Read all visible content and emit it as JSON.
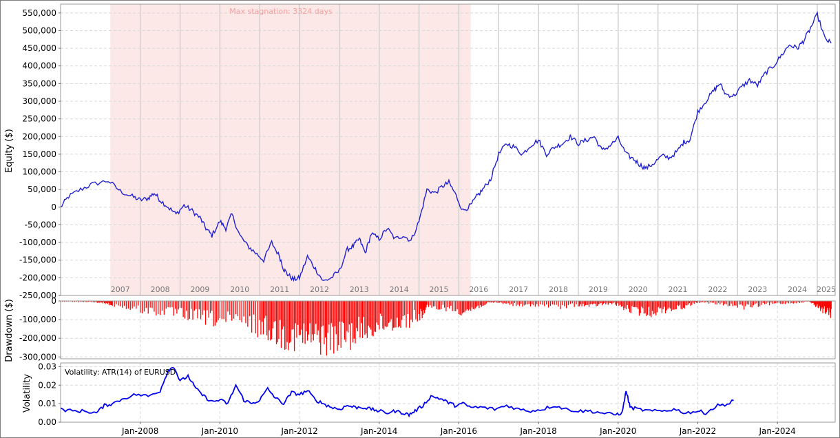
{
  "chart_data": [
    {
      "type": "line",
      "ylabel": "Equity ($)",
      "ylim": [
        -250000,
        575000
      ],
      "yticks": [
        550000,
        500000,
        450000,
        400000,
        350000,
        300000,
        250000,
        200000,
        150000,
        100000,
        50000,
        0,
        -50000,
        -100000,
        -150000,
        -200000,
        -250000
      ],
      "ytick_labels": [
        "550,000",
        "500,000",
        "450,000",
        "400,000",
        "350,000",
        "300,000",
        "250,000",
        "200,000",
        "150,000",
        "100,000",
        "50,000",
        "0",
        "-50,000",
        "-100,000",
        "-150,000",
        "-200,000",
        "-250,000"
      ],
      "year_labels": [
        "2007",
        "2008",
        "2009",
        "2010",
        "2011",
        "2012",
        "2013",
        "2014",
        "2015",
        "2016",
        "2017",
        "2018",
        "2019",
        "2020",
        "2021",
        "2022",
        "2023",
        "2024",
        "2025"
      ],
      "annotation": "Max stagnation: 3324 days",
      "stagnation_period": [
        2007.25,
        2016.3
      ],
      "series": [
        {
          "color": "#2020d0",
          "x": [
            2006.0,
            2006.2,
            2006.5,
            2006.8,
            2007.2,
            2007.5,
            2007.8,
            2008.0,
            2008.2,
            2008.35,
            2008.5,
            2008.7,
            2008.9,
            2009.1,
            2009.3,
            2009.5,
            2009.65,
            2009.8,
            2010.0,
            2010.15,
            2010.3,
            2010.5,
            2010.7,
            2010.9,
            2011.1,
            2011.3,
            2011.5,
            2011.6,
            2011.7,
            2011.85,
            2012.0,
            2012.2,
            2012.4,
            2012.6,
            2012.8,
            2013.0,
            2013.2,
            2013.35,
            2013.5,
            2013.65,
            2013.8,
            2014.0,
            2014.2,
            2014.4,
            2014.6,
            2014.8,
            2015.0,
            2015.2,
            2015.4,
            2015.6,
            2015.75,
            2015.9,
            2016.1,
            2016.3,
            2016.45,
            2016.6,
            2016.8,
            2017.0,
            2017.2,
            2017.4,
            2017.6,
            2017.8,
            2018.0,
            2018.2,
            2018.4,
            2018.6,
            2018.8,
            2019.0,
            2019.2,
            2019.4,
            2019.6,
            2019.8,
            2020.0,
            2020.2,
            2020.4,
            2020.55,
            2020.7,
            2020.9,
            2021.1,
            2021.3,
            2021.5,
            2021.65,
            2021.8,
            2022.0,
            2022.2,
            2022.4,
            2022.55,
            2022.7,
            2022.9,
            2023.1,
            2023.3,
            2023.5,
            2023.7,
            2023.9,
            2024.1,
            2024.3,
            2024.5,
            2024.65,
            2024.8,
            2025.0,
            2025.2,
            2025.35
          ],
          "y": [
            0,
            30000,
            50000,
            65000,
            75000,
            45000,
            30000,
            20000,
            25000,
            40000,
            20000,
            0,
            -20000,
            5000,
            -10000,
            -30000,
            -60000,
            -80000,
            -40000,
            -60000,
            -20000,
            -80000,
            -110000,
            -130000,
            -150000,
            -100000,
            -140000,
            -175000,
            -190000,
            -205000,
            -200000,
            -140000,
            -175000,
            -210000,
            -200000,
            -180000,
            -120000,
            -110000,
            -90000,
            -130000,
            -75000,
            -90000,
            -60000,
            -90000,
            -80000,
            -95000,
            -40000,
            50000,
            40000,
            60000,
            70000,
            40000,
            -10000,
            5000,
            30000,
            50000,
            80000,
            150000,
            180000,
            170000,
            150000,
            175000,
            190000,
            150000,
            170000,
            180000,
            200000,
            180000,
            190000,
            200000,
            160000,
            175000,
            195000,
            150000,
            135000,
            120000,
            110000,
            125000,
            145000,
            140000,
            160000,
            185000,
            190000,
            270000,
            300000,
            330000,
            350000,
            320000,
            315000,
            340000,
            360000,
            345000,
            380000,
            400000,
            430000,
            460000,
            450000,
            470000,
            500000,
            545000,
            475000,
            465000
          ]
        }
      ]
    },
    {
      "type": "area",
      "ylabel": "Drawdown ($)",
      "ylim": [
        -310000,
        0
      ],
      "yticks": [
        0,
        -100000,
        -200000,
        -300000
      ],
      "ytick_labels": [
        "0",
        "-100,000",
        "-200,000",
        "-300,000"
      ],
      "series": [
        {
          "color": "#ff0000",
          "x": [
            2006.0,
            2006.5,
            2006.9,
            2007.1,
            2007.3,
            2007.8,
            2008.3,
            2008.8,
            2009.2,
            2009.6,
            2010.0,
            2010.5,
            2011.0,
            2011.3,
            2011.6,
            2011.9,
            2012.2,
            2012.5,
            2012.8,
            2013.1,
            2013.4,
            2013.7,
            2014.0,
            2014.3,
            2014.6,
            2015.0,
            2015.2,
            2015.6,
            2016.0,
            2016.3,
            2016.6,
            2016.9,
            2017.2,
            2017.6,
            2018.0,
            2018.5,
            2019.0,
            2019.3,
            2019.6,
            2019.9,
            2020.2,
            2020.5,
            2020.8,
            2021.1,
            2021.4,
            2021.7,
            2022.0,
            2022.4,
            2022.8,
            2023.2,
            2023.6,
            2024.0,
            2024.4,
            2024.8,
            2025.0,
            2025.2,
            2025.35
          ],
          "y": [
            -5000,
            -8000,
            -10000,
            -15000,
            -30000,
            -60000,
            -80000,
            -90000,
            -110000,
            -130000,
            -150000,
            -170000,
            -200000,
            -230000,
            -260000,
            -280000,
            -290000,
            -295000,
            -295000,
            -280000,
            -250000,
            -220000,
            -190000,
            -170000,
            -160000,
            -120000,
            -60000,
            -50000,
            -80000,
            -70000,
            -30000,
            -10000,
            -20000,
            -40000,
            -30000,
            -50000,
            -30000,
            -40000,
            -25000,
            -20000,
            -60000,
            -80000,
            -90000,
            -70000,
            -60000,
            -40000,
            -10000,
            -20000,
            -30000,
            -50000,
            -30000,
            -20000,
            -15000,
            -5000,
            -40000,
            -80000,
            -100000
          ]
        }
      ]
    },
    {
      "type": "line",
      "ylabel": "Volatility",
      "ylim": [
        0,
        0.032
      ],
      "yticks": [
        0.03,
        0.02,
        0.01,
        0.0
      ],
      "ytick_labels": [
        "0.03",
        "0.02",
        "0.01",
        "0.00"
      ],
      "legend": "Volatility: ATR(14) of EURUSD",
      "xtick_labels": [
        "Jan-2008",
        "Jan-2010",
        "Jan-2012",
        "Jan-2014",
        "Jan-2016",
        "Jan-2018",
        "Jan-2020",
        "Jan-2022",
        "Jan-2024"
      ],
      "xtick_values": [
        2008,
        2010,
        2012,
        2014,
        2016,
        2018,
        2020,
        2022,
        2024
      ],
      "series": [
        {
          "color": "#0000ee",
          "x": [
            2006.0,
            2006.3,
            2006.6,
            2006.9,
            2007.1,
            2007.3,
            2007.6,
            2007.9,
            2008.2,
            2008.5,
            2008.7,
            2008.85,
            2009.0,
            2009.2,
            2009.4,
            2009.6,
            2009.8,
            2010.0,
            2010.2,
            2010.4,
            2010.6,
            2010.8,
            2011.0,
            2011.2,
            2011.4,
            2011.6,
            2011.8,
            2012.0,
            2012.2,
            2012.4,
            2012.6,
            2012.8,
            2013.0,
            2013.2,
            2013.4,
            2013.6,
            2013.8,
            2014.0,
            2014.2,
            2014.4,
            2014.6,
            2014.75,
            2014.9,
            2015.1,
            2015.3,
            2015.5,
            2015.7,
            2015.9,
            2016.1,
            2016.3,
            2016.6,
            2016.9,
            2017.2,
            2017.5,
            2017.8,
            2018.1,
            2018.4,
            2018.7,
            2019.0,
            2019.3,
            2019.6,
            2019.9,
            2020.1,
            2020.2,
            2020.3,
            2020.5,
            2020.8,
            2021.1,
            2021.4,
            2021.7,
            2022.0,
            2022.2,
            2022.5,
            2022.8,
            2022.9
          ],
          "y": [
            0.007,
            0.006,
            0.006,
            0.005,
            0.009,
            0.01,
            0.013,
            0.015,
            0.014,
            0.017,
            0.028,
            0.03,
            0.022,
            0.025,
            0.018,
            0.014,
            0.011,
            0.012,
            0.01,
            0.02,
            0.012,
            0.01,
            0.012,
            0.018,
            0.013,
            0.01,
            0.016,
            0.015,
            0.017,
            0.012,
            0.01,
            0.008,
            0.007,
            0.009,
            0.008,
            0.008,
            0.007,
            0.006,
            0.005,
            0.006,
            0.005,
            0.004,
            0.006,
            0.009,
            0.014,
            0.013,
            0.011,
            0.009,
            0.01,
            0.008,
            0.008,
            0.007,
            0.009,
            0.007,
            0.006,
            0.007,
            0.009,
            0.007,
            0.006,
            0.006,
            0.005,
            0.004,
            0.005,
            0.017,
            0.008,
            0.007,
            0.006,
            0.006,
            0.007,
            0.005,
            0.006,
            0.005,
            0.009,
            0.01,
            0.012
          ]
        }
      ]
    }
  ]
}
